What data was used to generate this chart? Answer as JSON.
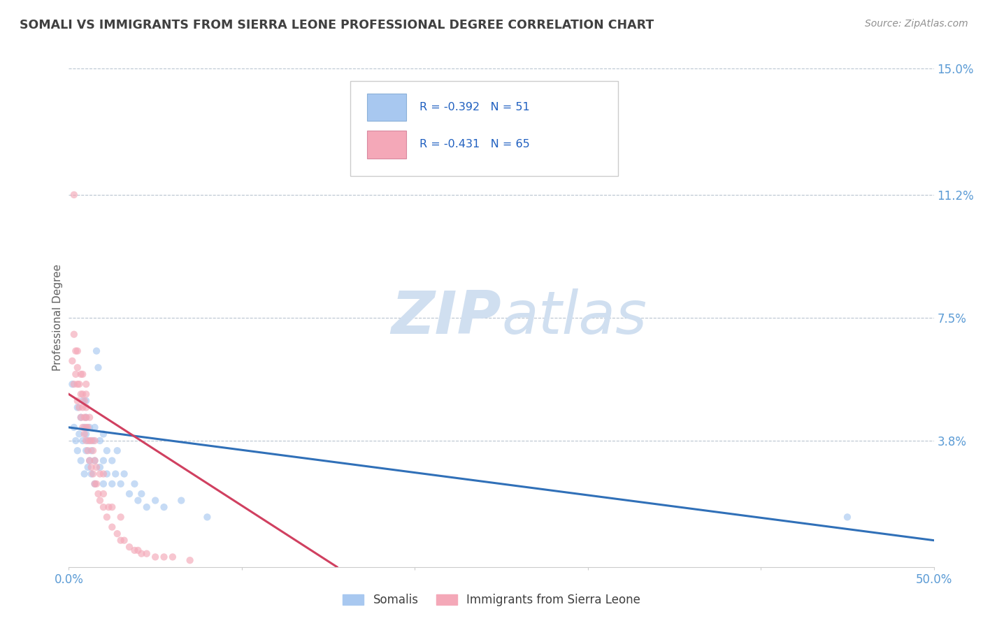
{
  "title": "SOMALI VS IMMIGRANTS FROM SIERRA LEONE PROFESSIONAL DEGREE CORRELATION CHART",
  "source_text": "Source: ZipAtlas.com",
  "ylabel": "Professional Degree",
  "xlim": [
    0.0,
    0.5
  ],
  "ylim": [
    0.0,
    0.15
  ],
  "y_tick_labels_right": [
    "15.0%",
    "11.2%",
    "7.5%",
    "3.8%",
    ""
  ],
  "y_tick_positions_right": [
    0.15,
    0.112,
    0.075,
    0.038,
    0.0
  ],
  "hline_positions": [
    0.15,
    0.112,
    0.075,
    0.038
  ],
  "somali_color": "#a8c8f0",
  "sierra_leone_color": "#f4a8b8",
  "somali_line_color": "#3070b8",
  "sierra_leone_line_color": "#d04060",
  "watermark_color": "#d0dff0",
  "title_color": "#404040",
  "axis_label_color": "#5b9bd5",
  "dot_size": 55,
  "dot_alpha": 0.65,
  "somali_x": [
    0.002,
    0.003,
    0.004,
    0.005,
    0.005,
    0.006,
    0.007,
    0.007,
    0.008,
    0.008,
    0.009,
    0.009,
    0.01,
    0.01,
    0.01,
    0.01,
    0.011,
    0.011,
    0.012,
    0.012,
    0.013,
    0.013,
    0.014,
    0.015,
    0.015,
    0.015,
    0.016,
    0.017,
    0.018,
    0.018,
    0.02,
    0.02,
    0.02,
    0.022,
    0.022,
    0.025,
    0.025,
    0.027,
    0.028,
    0.03,
    0.032,
    0.035,
    0.038,
    0.04,
    0.042,
    0.045,
    0.05,
    0.055,
    0.065,
    0.08,
    0.45
  ],
  "somali_y": [
    0.055,
    0.042,
    0.038,
    0.048,
    0.035,
    0.04,
    0.032,
    0.045,
    0.038,
    0.05,
    0.042,
    0.028,
    0.035,
    0.04,
    0.045,
    0.05,
    0.03,
    0.038,
    0.032,
    0.042,
    0.028,
    0.035,
    0.038,
    0.025,
    0.032,
    0.042,
    0.065,
    0.06,
    0.03,
    0.038,
    0.025,
    0.032,
    0.04,
    0.028,
    0.035,
    0.025,
    0.032,
    0.028,
    0.035,
    0.025,
    0.028,
    0.022,
    0.025,
    0.02,
    0.022,
    0.018,
    0.02,
    0.018,
    0.02,
    0.015,
    0.015
  ],
  "sierra_leone_x": [
    0.002,
    0.003,
    0.003,
    0.004,
    0.004,
    0.005,
    0.005,
    0.005,
    0.005,
    0.006,
    0.006,
    0.007,
    0.007,
    0.007,
    0.008,
    0.008,
    0.008,
    0.008,
    0.009,
    0.009,
    0.009,
    0.01,
    0.01,
    0.01,
    0.01,
    0.01,
    0.01,
    0.011,
    0.011,
    0.012,
    0.012,
    0.012,
    0.013,
    0.013,
    0.014,
    0.014,
    0.015,
    0.015,
    0.015,
    0.016,
    0.016,
    0.017,
    0.018,
    0.018,
    0.02,
    0.02,
    0.02,
    0.022,
    0.023,
    0.025,
    0.025,
    0.028,
    0.03,
    0.03,
    0.032,
    0.035,
    0.038,
    0.04,
    0.042,
    0.045,
    0.05,
    0.055,
    0.06,
    0.07,
    0.003
  ],
  "sierra_leone_y": [
    0.062,
    0.055,
    0.07,
    0.058,
    0.065,
    0.05,
    0.055,
    0.06,
    0.065,
    0.048,
    0.055,
    0.045,
    0.052,
    0.058,
    0.042,
    0.048,
    0.052,
    0.058,
    0.04,
    0.045,
    0.05,
    0.038,
    0.042,
    0.045,
    0.048,
    0.052,
    0.055,
    0.035,
    0.042,
    0.032,
    0.038,
    0.045,
    0.03,
    0.038,
    0.028,
    0.035,
    0.025,
    0.032,
    0.038,
    0.025,
    0.03,
    0.022,
    0.02,
    0.028,
    0.018,
    0.022,
    0.028,
    0.015,
    0.018,
    0.012,
    0.018,
    0.01,
    0.008,
    0.015,
    0.008,
    0.006,
    0.005,
    0.005,
    0.004,
    0.004,
    0.003,
    0.003,
    0.003,
    0.002,
    0.112
  ],
  "somali_line_x": [
    0.0,
    0.5
  ],
  "somali_line_y": [
    0.042,
    0.008
  ],
  "sierra_line_x": [
    0.0,
    0.155
  ],
  "sierra_line_y": [
    0.052,
    0.0
  ]
}
